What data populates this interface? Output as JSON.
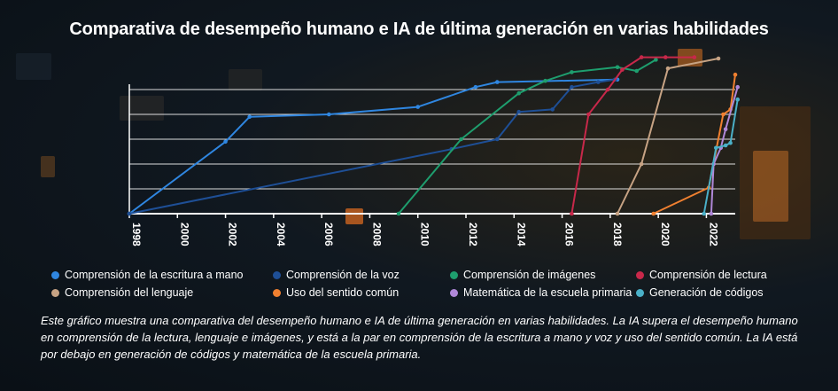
{
  "title": "Comparativa de desempeño humano e IA de última generación en varias habilidades",
  "caption": "Este gráfico muestra una comparativa del desempeño humano e IA de última generación en varias habilidades. La IA supera el desempeño humano en comprensión de la lectura, lenguaje e imágenes, y está a la par en comprensión de la escritura a mano y voz y uso del sentido común. La IA está por debajo en generación de códigos y matemática de la escuela primaria.",
  "chart_data": {
    "type": "line",
    "title": "Comparativa de desempeño humano e IA de última generación en varias habilidades",
    "xlabel": "",
    "ylabel": "",
    "xlim": [
      1998,
      2023.2
    ],
    "ylim": [
      -100,
      25
    ],
    "x_ticks": [
      "1998",
      "2000",
      "2002",
      "2004",
      "2006",
      "2008",
      "2010",
      "2012",
      "2014",
      "2016",
      "2018",
      "2020",
      "2022"
    ],
    "grid": true,
    "legend_position": "bottom",
    "series": [
      {
        "name": "Comprensión de la escritura a mano",
        "color": "#2f86e0",
        "points": [
          [
            1998,
            -100
          ],
          [
            2002,
            -42
          ],
          [
            2003,
            -22
          ],
          [
            2006.3,
            -20
          ],
          [
            2010,
            -14
          ],
          [
            2012.4,
            2
          ],
          [
            2013.3,
            6
          ],
          [
            2018.3,
            8
          ]
        ]
      },
      {
        "name": "Comprensión de la voz",
        "color": "#1e4f96",
        "points": [
          [
            1998,
            -100
          ],
          [
            2011.4,
            -48
          ],
          [
            2013.3,
            -40
          ],
          [
            2014.2,
            -18
          ],
          [
            2015.6,
            -16
          ],
          [
            2016.4,
            2
          ],
          [
            2017.5,
            6
          ],
          [
            2018.2,
            8
          ]
        ]
      },
      {
        "name": "Comprensión de imágenes",
        "color": "#1e9e6e",
        "points": [
          [
            2009.2,
            -100
          ],
          [
            2011.8,
            -40
          ],
          [
            2014.2,
            -3
          ],
          [
            2015.3,
            7
          ],
          [
            2016.4,
            14
          ],
          [
            2018.3,
            18
          ],
          [
            2019.1,
            15
          ],
          [
            2019.9,
            24
          ]
        ]
      },
      {
        "name": "Comprensión de lectura",
        "color": "#c8284a",
        "points": [
          [
            2016.4,
            -100
          ],
          [
            2017.1,
            -20
          ],
          [
            2017.9,
            0
          ],
          [
            2018.5,
            16
          ],
          [
            2019.3,
            26
          ],
          [
            2020.3,
            26
          ],
          [
            2021.5,
            26
          ]
        ]
      },
      {
        "name": "Comprensión del lenguaje",
        "color": "#c7a384",
        "points": [
          [
            2018.3,
            -100
          ],
          [
            2019.3,
            -60
          ],
          [
            2020.4,
            17
          ],
          [
            2022.5,
            25
          ]
        ]
      },
      {
        "name": "Uso del sentido común",
        "color": "#f08030",
        "points": [
          [
            2019.8,
            -100
          ],
          [
            2022.1,
            -79
          ],
          [
            2022.7,
            -20
          ],
          [
            2023.0,
            -16
          ],
          [
            2023.2,
            12
          ]
        ]
      },
      {
        "name": "Matemática de la escuela primaria",
        "color": "#b088d8",
        "points": [
          [
            2022.2,
            -100
          ],
          [
            2022.3,
            -60
          ],
          [
            2022.6,
            -47
          ],
          [
            2022.8,
            -32
          ],
          [
            2023.3,
            2
          ]
        ]
      },
      {
        "name": "Generación de códigos",
        "color": "#4ab0c8",
        "points": [
          [
            2021.9,
            -100
          ],
          [
            2022.4,
            -47
          ],
          [
            2022.8,
            -45
          ],
          [
            2023.0,
            -43
          ],
          [
            2023.3,
            -8
          ]
        ]
      }
    ]
  }
}
